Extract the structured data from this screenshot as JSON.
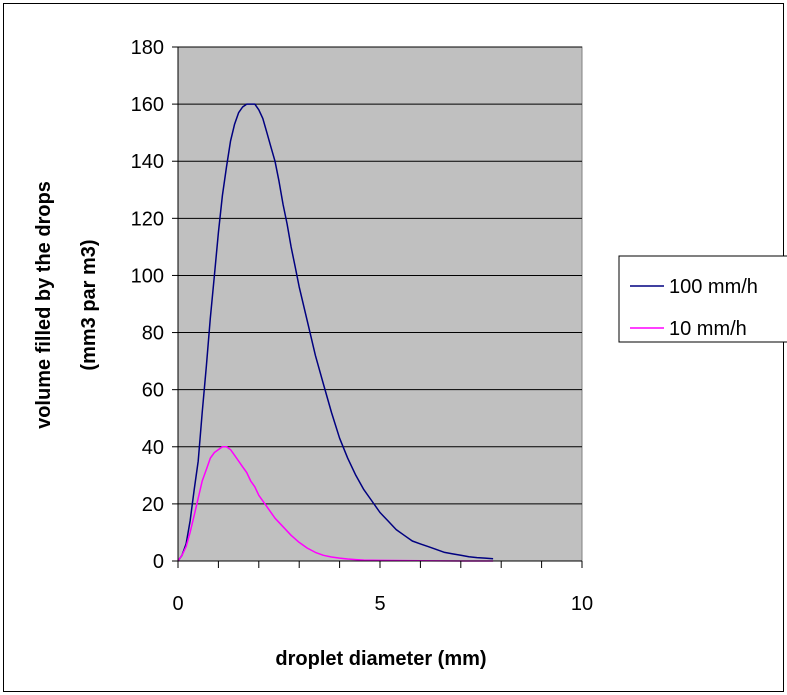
{
  "chart_data": {
    "type": "line",
    "title": "",
    "xlabel": "droplet diameter (mm)",
    "ylabel_line1": "volume filled by the drops",
    "ylabel_line2": "(mm3 par m3)",
    "xlim": [
      0,
      10
    ],
    "ylim": [
      0,
      180
    ],
    "x_ticks": [
      0,
      5,
      10
    ],
    "y_ticks": [
      0,
      20,
      40,
      60,
      80,
      100,
      120,
      140,
      160,
      180
    ],
    "x_minor_step": 1,
    "grid": "horizontal",
    "plot_background": "#c0c0c0",
    "legend_position": "right",
    "series": [
      {
        "name": "100 mm/h",
        "color": "#000080",
        "x": [
          0,
          0.1,
          0.2,
          0.3,
          0.4,
          0.5,
          0.6,
          0.7,
          0.8,
          0.9,
          1.0,
          1.1,
          1.2,
          1.3,
          1.4,
          1.5,
          1.6,
          1.7,
          1.8,
          1.9,
          2.0,
          2.1,
          2.2,
          2.3,
          2.4,
          2.5,
          2.6,
          2.7,
          2.8,
          2.9,
          3.0,
          3.2,
          3.4,
          3.6,
          3.8,
          4.0,
          4.2,
          4.4,
          4.6,
          4.8,
          5.0,
          5.2,
          5.4,
          5.6,
          5.8,
          6.0,
          6.2,
          6.4,
          6.6,
          6.8,
          7.0,
          7.2,
          7.4,
          7.6,
          7.8
        ],
        "y": [
          0,
          2,
          6,
          14,
          25,
          35,
          52,
          68,
          85,
          100,
          115,
          128,
          138,
          147,
          153,
          157,
          159,
          160,
          160,
          160,
          158,
          155,
          150,
          145,
          140,
          133,
          125,
          118,
          110,
          103,
          96,
          84,
          72,
          62,
          52,
          43,
          36,
          30,
          25,
          21,
          17,
          14,
          11,
          9,
          7,
          6,
          5,
          4,
          3,
          2.5,
          2,
          1.5,
          1.2,
          1,
          0.8
        ]
      },
      {
        "name": "10 mm/h",
        "color": "#ff00ff",
        "x": [
          0,
          0.1,
          0.2,
          0.3,
          0.4,
          0.5,
          0.6,
          0.7,
          0.8,
          0.9,
          1.0,
          1.1,
          1.2,
          1.3,
          1.4,
          1.5,
          1.6,
          1.7,
          1.8,
          1.9,
          2.0,
          2.2,
          2.4,
          2.6,
          2.8,
          3.0,
          3.2,
          3.4,
          3.6,
          3.8,
          4.0,
          4.2,
          4.4,
          4.6,
          5.0,
          6.0,
          7.0,
          7.8
        ],
        "y": [
          0,
          2,
          5,
          10,
          16,
          22,
          28,
          32,
          36,
          38,
          39,
          40,
          40,
          39,
          37,
          35,
          33,
          31,
          28,
          26,
          23,
          19,
          15,
          12,
          9,
          6.5,
          4.5,
          3,
          2,
          1.4,
          1,
          0.7,
          0.5,
          0.3,
          0.2,
          0.1,
          0,
          0
        ]
      }
    ]
  }
}
